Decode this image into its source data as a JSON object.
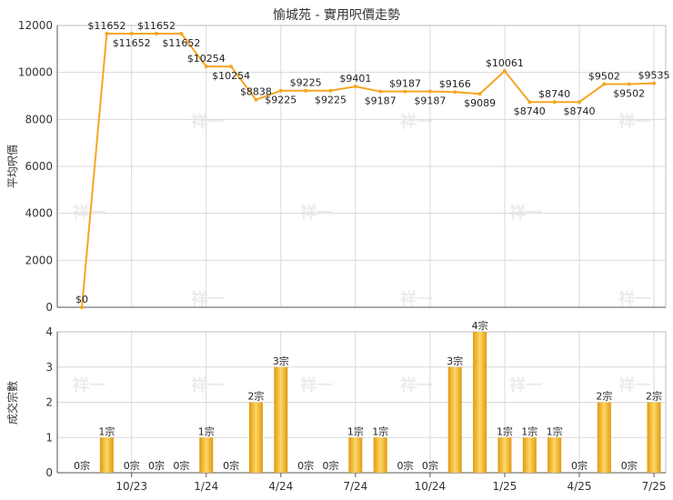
{
  "title": "愉城苑 - 實用呎價走勢",
  "colors": {
    "line": "#f5a623",
    "bar_dark": "#e09a10",
    "bar_light": "#ffd766",
    "grid": "#d9d9d9",
    "text": "#333333"
  },
  "watermark": "祥一",
  "chart_data": [
    {
      "type": "line",
      "title": "愉城苑 - 實用呎價走勢",
      "ylabel": "平均呎價",
      "ylim": [
        0,
        12000
      ],
      "yticks": [
        0,
        2000,
        4000,
        6000,
        8000,
        10000,
        12000
      ],
      "grid": true,
      "x": [
        "2023-08",
        "2023-09",
        "2023-10",
        "2023-11",
        "2023-12",
        "2024-01",
        "2024-02",
        "2024-03",
        "2024-04",
        "2024-05",
        "2024-06",
        "2024-07",
        "2024-08",
        "2024-09",
        "2024-10",
        "2024-11",
        "2024-12",
        "2025-01",
        "2025-02",
        "2025-03",
        "2025-04",
        "2025-05",
        "2025-06",
        "2025-07"
      ],
      "values": [
        0,
        11652,
        11652,
        11652,
        11652,
        10254,
        10254,
        8838,
        9225,
        9225,
        9225,
        9401,
        9187,
        9187,
        9187,
        9166,
        9089,
        10061,
        8740,
        8740,
        8740,
        9502,
        9502,
        9535
      ],
      "labels": [
        "$0",
        "$11652",
        "$11652",
        "$11652",
        "$11652",
        "$10254",
        "$10254",
        "$8838",
        "$9225",
        "$9225",
        "$9225",
        "$9401",
        "$9187",
        "$9187",
        "$9187",
        "$9166",
        "$9089",
        "$10061",
        "$8740",
        "$8740",
        "$8740",
        "$9502",
        "$9502",
        "$9535"
      ]
    },
    {
      "type": "bar",
      "ylabel": "成交宗數",
      "ylim": [
        0,
        4
      ],
      "yticks": [
        0,
        1,
        2,
        3,
        4
      ],
      "grid": true,
      "categories": [
        "2023-08",
        "2023-09",
        "2023-10",
        "2023-11",
        "2023-12",
        "2024-01",
        "2024-02",
        "2024-03",
        "2024-04",
        "2024-05",
        "2024-06",
        "2024-07",
        "2024-08",
        "2024-09",
        "2024-10",
        "2024-11",
        "2024-12",
        "2025-01",
        "2025-02",
        "2025-03",
        "2025-04",
        "2025-05",
        "2025-06",
        "2025-07"
      ],
      "values": [
        0,
        1,
        0,
        0,
        0,
        1,
        0,
        2,
        3,
        0,
        0,
        1,
        1,
        0,
        0,
        3,
        4,
        1,
        1,
        1,
        0,
        2,
        0,
        2
      ],
      "labels": [
        "0宗",
        "1宗",
        "0宗",
        "0宗",
        "0宗",
        "1宗",
        "0宗",
        "2宗",
        "3宗",
        "0宗",
        "0宗",
        "1宗",
        "1宗",
        "0宗",
        "0宗",
        "3宗",
        "4宗",
        "1宗",
        "1宗",
        "1宗",
        "0宗",
        "2宗",
        "0宗",
        "2宗"
      ],
      "xtick_labels": [
        {
          "index": 2,
          "label": "10/23"
        },
        {
          "index": 5,
          "label": "1/24"
        },
        {
          "index": 8,
          "label": "4/24"
        },
        {
          "index": 11,
          "label": "7/24"
        },
        {
          "index": 14,
          "label": "10/24"
        },
        {
          "index": 17,
          "label": "1/25"
        },
        {
          "index": 20,
          "label": "4/25"
        },
        {
          "index": 23,
          "label": "7/25"
        }
      ]
    }
  ]
}
